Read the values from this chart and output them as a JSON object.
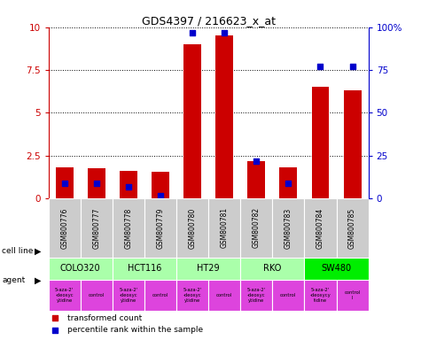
{
  "title": "GDS4397 / 216623_x_at",
  "samples": [
    "GSM800776",
    "GSM800777",
    "GSM800778",
    "GSM800779",
    "GSM800780",
    "GSM800781",
    "GSM800782",
    "GSM800783",
    "GSM800784",
    "GSM800785"
  ],
  "red_values": [
    1.8,
    1.75,
    1.6,
    1.55,
    9.0,
    9.5,
    2.2,
    1.8,
    6.5,
    6.3
  ],
  "blue_y": [
    0.9,
    0.9,
    0.7,
    0.15,
    9.7,
    9.7,
    2.2,
    0.9,
    7.7,
    7.7
  ],
  "blue_percentile": [
    9,
    9,
    7,
    1.5,
    97,
    97,
    22,
    9,
    77,
    77
  ],
  "cell_lines": [
    {
      "name": "COLO320",
      "start": 0,
      "end": 2,
      "color": "#aaffaa"
    },
    {
      "name": "HCT116",
      "start": 2,
      "end": 4,
      "color": "#aaffaa"
    },
    {
      "name": "HT29",
      "start": 4,
      "end": 6,
      "color": "#aaffaa"
    },
    {
      "name": "RKO",
      "start": 6,
      "end": 8,
      "color": "#aaffaa"
    },
    {
      "name": "SW480",
      "start": 8,
      "end": 10,
      "color": "#00ee00"
    }
  ],
  "agents": [
    {
      "name": "5-aza-2'\n-deoxyc\nytidine"
    },
    {
      "name": "control"
    },
    {
      "name": "5-aza-2'\n-deoxyc\nytidine"
    },
    {
      "name": "control"
    },
    {
      "name": "5-aza-2'\n-deoxyc\nytidine"
    },
    {
      "name": "control"
    },
    {
      "name": "5-aza-2'\n-deoxyc\nytidine"
    },
    {
      "name": "control"
    },
    {
      "name": "5-aza-2'\n-deoxycy\ntidine"
    },
    {
      "name": "control\nl"
    }
  ],
  "agent_color": "#dd44dd",
  "ylim_left": [
    0,
    10
  ],
  "ylim_right": [
    0,
    100
  ],
  "yticks_left": [
    0,
    2.5,
    5,
    7.5,
    10
  ],
  "yticks_right": [
    0,
    25,
    50,
    75,
    100
  ],
  "bar_color": "#cc0000",
  "dot_color": "#0000cc",
  "tick_color_left": "#cc0000",
  "tick_color_right": "#0000cc",
  "sample_bg": "#cccccc",
  "bar_width": 0.55
}
